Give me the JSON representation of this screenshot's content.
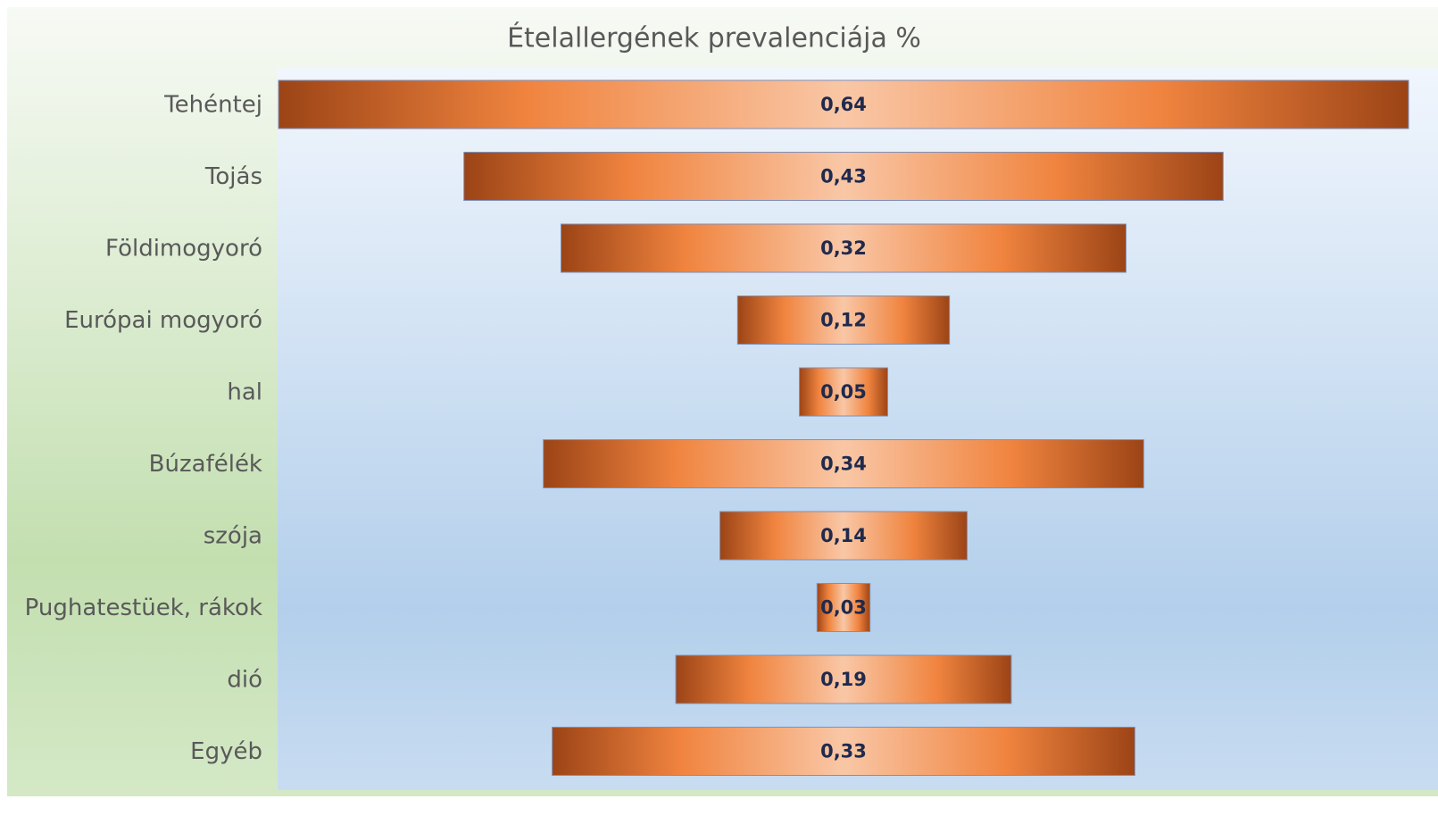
{
  "chart_data": {
    "type": "funnel",
    "title": "Ételallergének prevalenciája %",
    "categories": [
      "Tehéntej",
      "Tojás",
      "Földimogyoró",
      "Európai mogyoró",
      "hal",
      "Búzafélék",
      "szója",
      "Pughatestüek, rákok",
      "dió",
      "Egyéb"
    ],
    "values": [
      0.64,
      0.43,
      0.32,
      0.12,
      0.05,
      0.34,
      0.14,
      0.03,
      0.19,
      0.33
    ],
    "value_labels": [
      "0,64",
      "0,43",
      "0,32",
      "0,12",
      "0,05",
      "0,34",
      "0,14",
      "0,03",
      "0,19",
      "0,33"
    ],
    "color": "#f0843f"
  }
}
